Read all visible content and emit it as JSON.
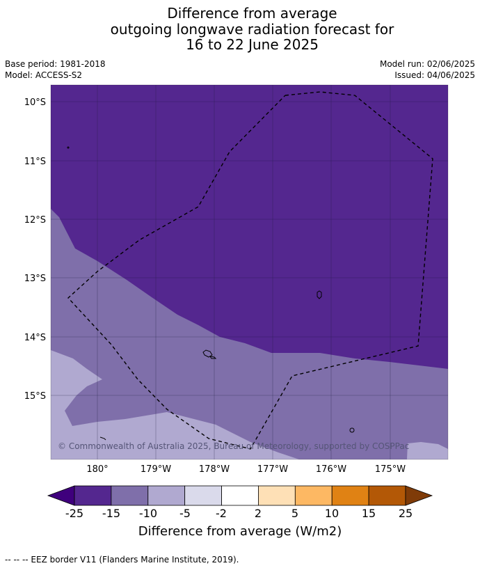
{
  "title": {
    "line1": "Difference from average",
    "line2": "outgoing longwave radiation forecast for",
    "line3": "16 to 22 June 2025"
  },
  "meta": {
    "base_period": "Base period: 1981-2018",
    "model": "Model: ACCESS-S2",
    "model_run": "Model run: 02/06/2025",
    "issued": "Issued: 04/06/2025"
  },
  "map": {
    "lat_ticks": [
      "10°S",
      "11°S",
      "12°S",
      "13°S",
      "14°S",
      "15°S"
    ],
    "lon_ticks": [
      "180°",
      "179°W",
      "178°W",
      "177°W",
      "176°W",
      "175°W"
    ],
    "copyright": "© Commonwealth of Australia 2025, Bureau of Meteorology, supported by COSPPac",
    "colors": {
      "deep_purple": "#54278f",
      "mid_purple": "#7f6faa",
      "light_purple": "#b0a9d0",
      "pale_lavender": "#dadaeb"
    }
  },
  "colorbar": {
    "label": "Difference from average (W/m2)",
    "ticks": [
      "-25",
      "-15",
      "-10",
      "-5",
      "-2",
      "2",
      "5",
      "10",
      "15",
      "25"
    ],
    "colors": [
      "#3f007d",
      "#54278f",
      "#7f6faa",
      "#b0a9d0",
      "#dadaeb",
      "#ffffff",
      "#fee0b6",
      "#fdb863",
      "#e08214",
      "#b35806",
      "#7f3b08"
    ]
  },
  "footnote": "--  --  -- EEZ border V11 (Flanders Marine Institute, 2019)."
}
